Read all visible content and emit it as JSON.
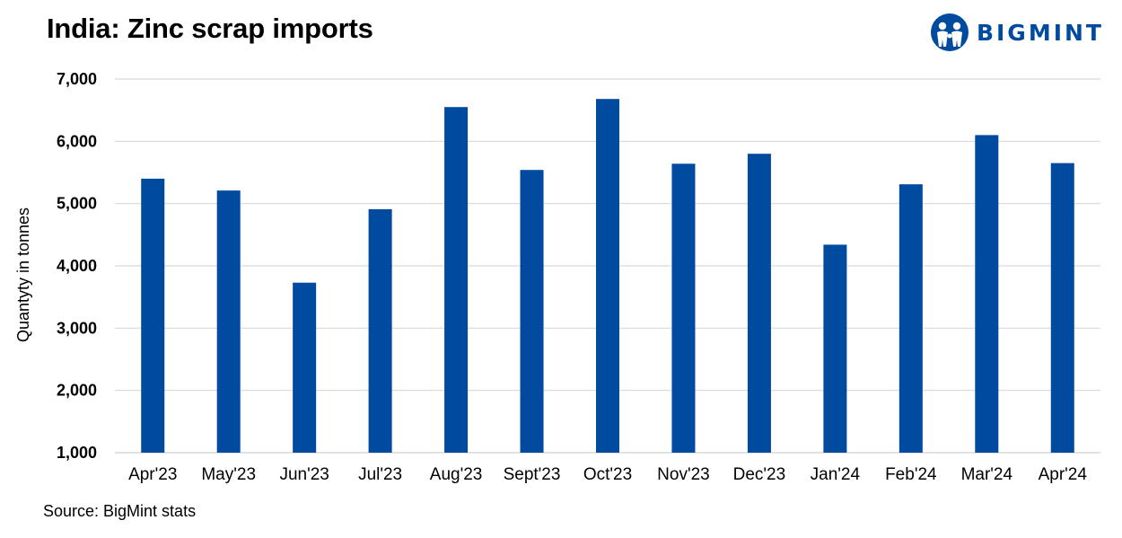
{
  "header": {
    "title": "India: Zinc scrap imports",
    "logo_text": "BIGMINT",
    "logo_icon": "bigmint-people-icon"
  },
  "footer": {
    "source": "Source: BigMint stats"
  },
  "colors": {
    "bar": "#004AA0",
    "grid": "#D9D9D9",
    "logo": "#004AA0"
  },
  "chart_data": {
    "type": "bar",
    "title": "India: Zinc scrap imports",
    "xlabel": "",
    "ylabel": "Quantyty in tonnes",
    "ylim": [
      1000,
      7000
    ],
    "yticks": [
      1000,
      2000,
      3000,
      4000,
      5000,
      6000,
      7000
    ],
    "ytick_labels": [
      "1,000",
      "2,000",
      "3,000",
      "4,000",
      "5,000",
      "6,000",
      "7,000"
    ],
    "grid": true,
    "legend": "none",
    "categories": [
      "Apr'23",
      "May'23",
      "Jun'23",
      "Jul'23",
      "Aug'23",
      "Sept'23",
      "Oct'23",
      "Nov'23",
      "Dec'23",
      "Jan'24",
      "Feb'24",
      "Mar'24",
      "Apr'24"
    ],
    "values": [
      5400,
      5210,
      3730,
      4910,
      6550,
      5540,
      6680,
      5640,
      5800,
      4340,
      5310,
      6100,
      5650
    ]
  }
}
